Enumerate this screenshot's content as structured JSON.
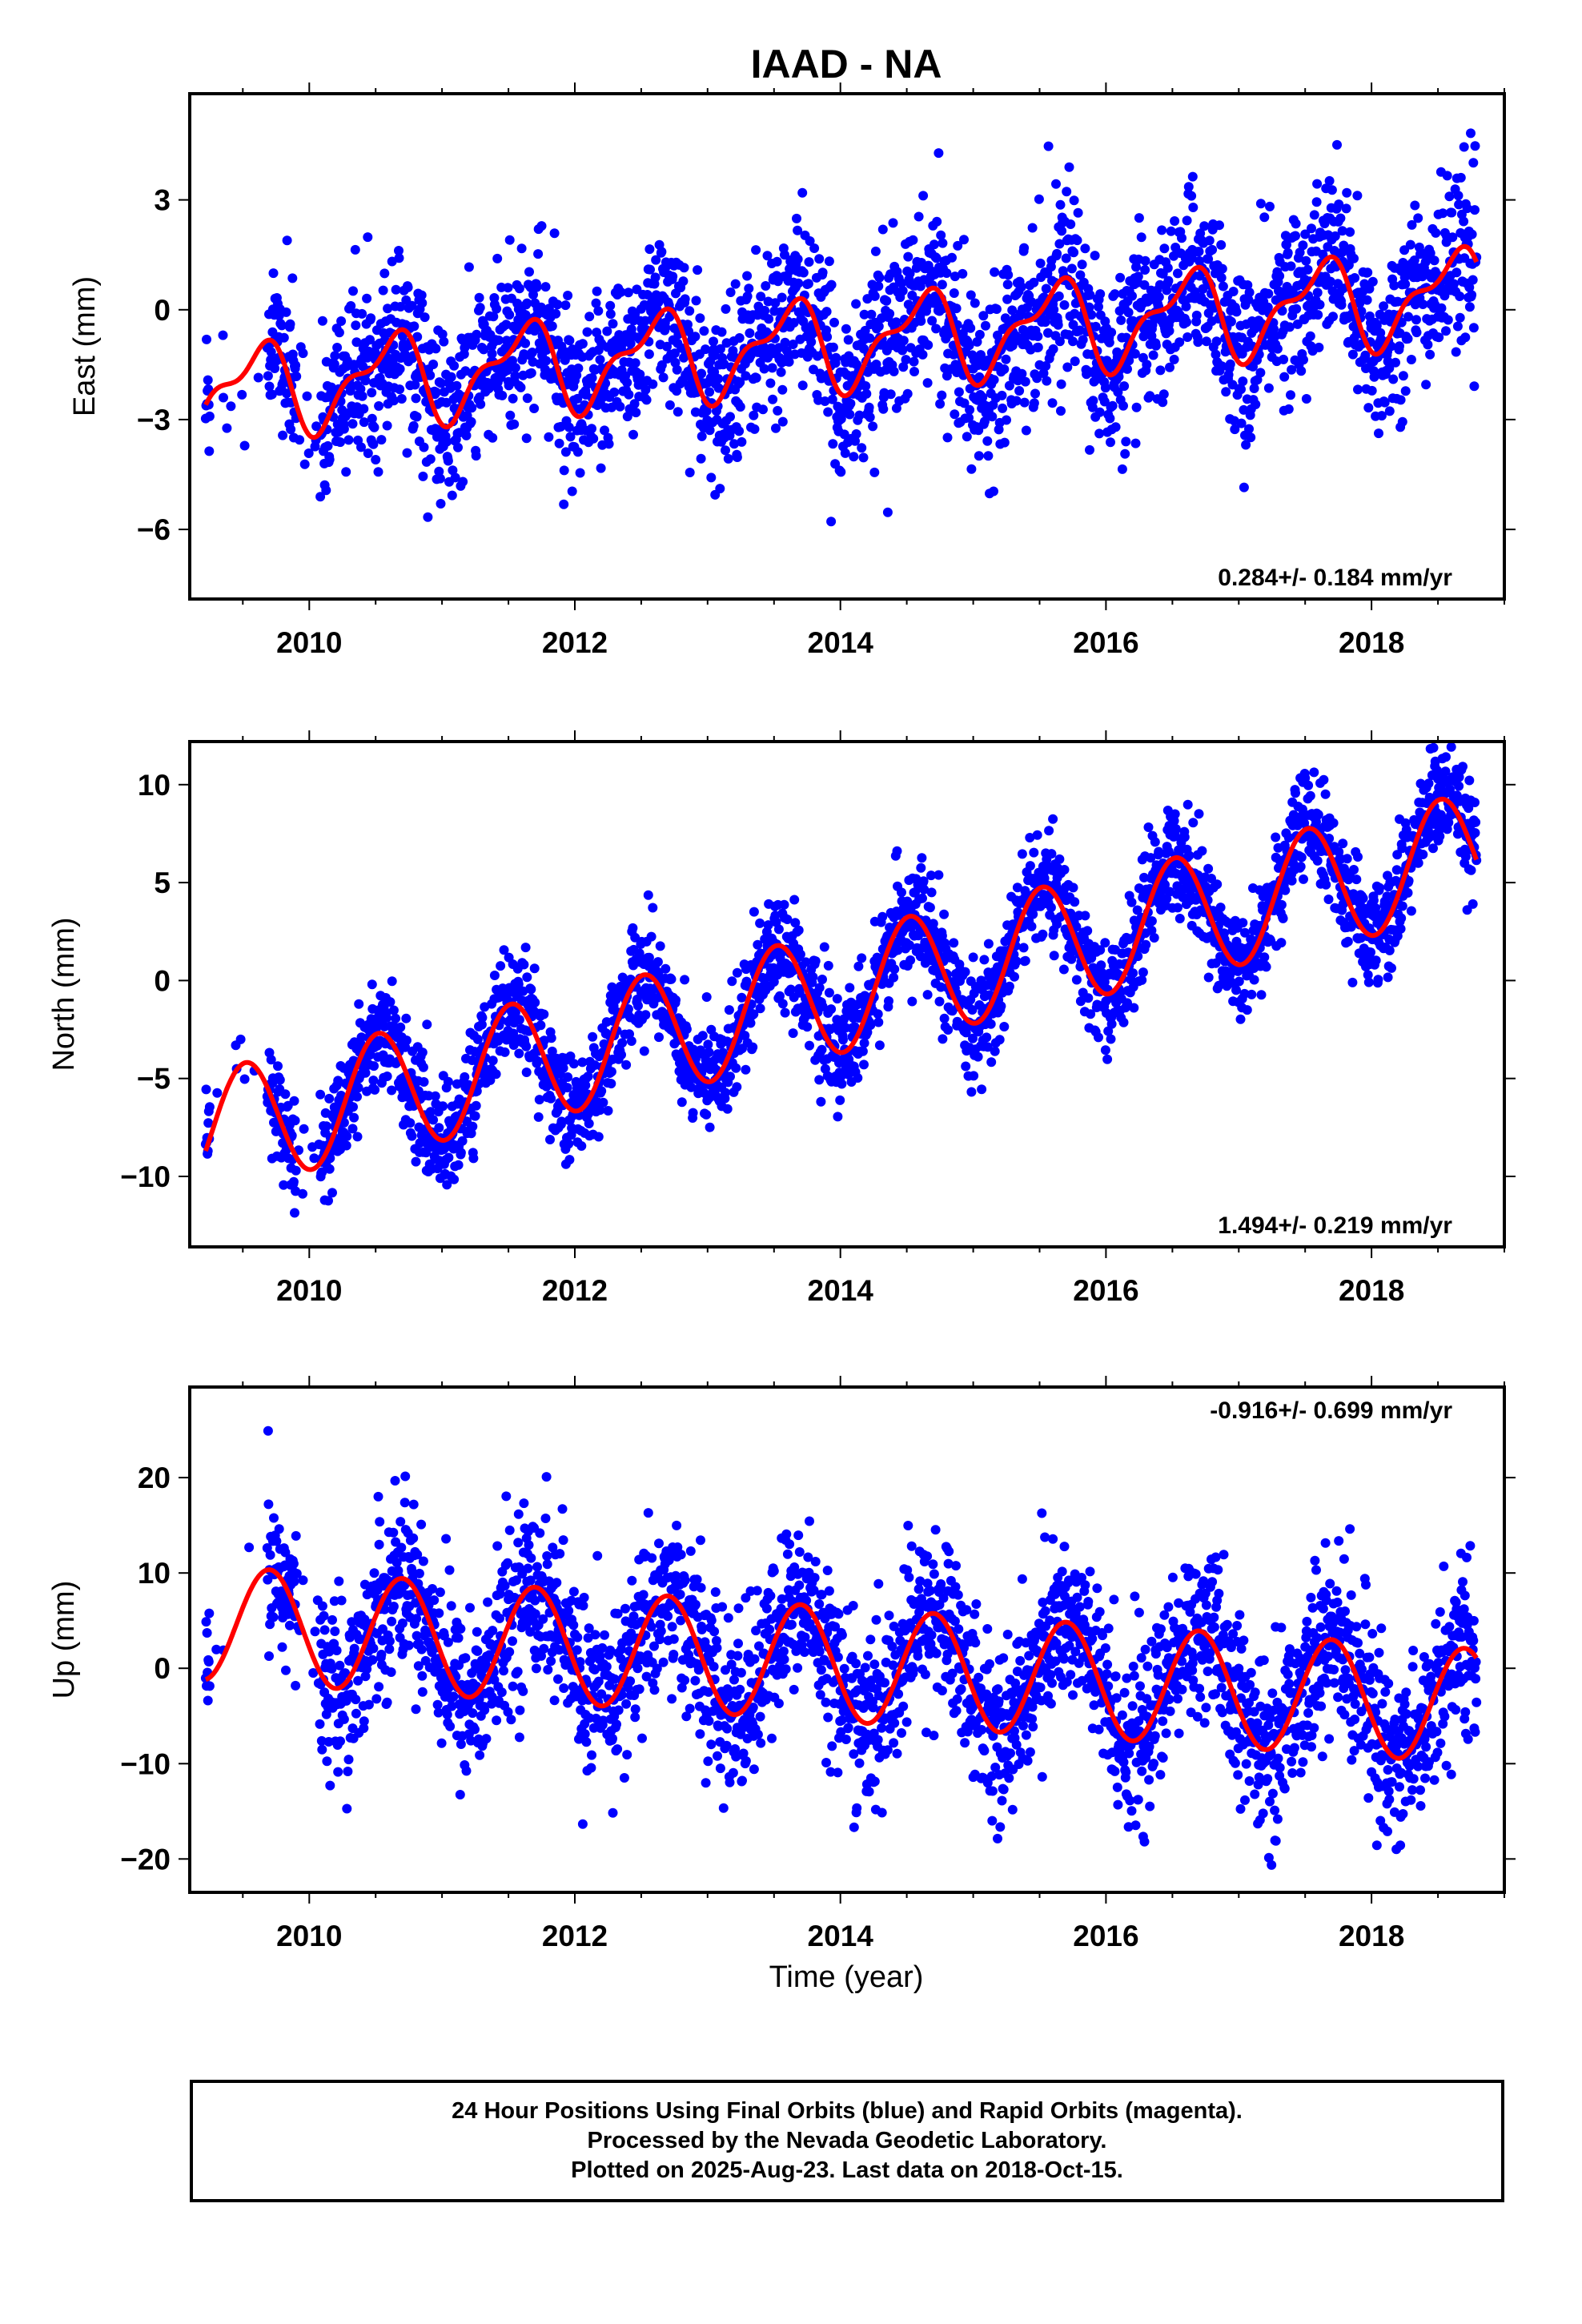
{
  "title": "IAAD - NA",
  "xlabel": "Time (year)",
  "colors": {
    "data": "#0000ff",
    "model": "#ff0000",
    "axes": "#000000"
  },
  "caption": [
    "24 Hour Positions Using Final Orbits (blue) and Rapid Orbits (magenta).",
    "Processed by the Nevada Geodetic Laboratory.",
    "Plotted on 2025-Aug-23. Last data on 2018-Oct-15."
  ],
  "chart_data": [
    {
      "type": "scatter",
      "component": "east",
      "ylabel": "East (mm)",
      "rate_text": "0.284+/- 0.184 mm/yr",
      "xlim": [
        2009.1,
        2019.0
      ],
      "ylim": [
        -7.9,
        5.9
      ],
      "xticks": [
        2010,
        2012,
        2014,
        2016,
        2018
      ],
      "yticks": [
        -6,
        -3,
        0,
        3
      ],
      "grid": false,
      "data_start": 2009.22,
      "data_end": 2018.79,
      "model": {
        "offset": -0.9,
        "rate": 0.284,
        "ref_year": 2014.0,
        "annual_amp": 1.1,
        "annual_peak": 2009.6,
        "semiannual_amp": 0.5,
        "semiannual_peak": 2009.75
      },
      "scatter_spread": 1.1,
      "series": [
        {
          "name": "Final Orbits",
          "color": "#0000ff"
        },
        {
          "name": "Model",
          "color": "#ff0000"
        }
      ]
    },
    {
      "type": "scatter",
      "component": "north",
      "ylabel": "North (mm)",
      "rate_text": "1.494+/- 0.219 mm/yr",
      "xlim": [
        2009.1,
        2019.0
      ],
      "ylim": [
        -13.6,
        12.2
      ],
      "xticks": [
        2010,
        2012,
        2014,
        2016,
        2018
      ],
      "yticks": [
        -10,
        -5,
        0,
        5,
        10
      ],
      "grid": false,
      "data_start": 2009.22,
      "data_end": 2018.79,
      "model": {
        "offset": -0.6,
        "rate": 1.494,
        "ref_year": 2014.0,
        "annual_amp": 3.1,
        "annual_peak": 2009.52,
        "semiannual_amp": 0.0,
        "semiannual_peak": 2009.5
      },
      "scatter_spread": 1.3,
      "series": [
        {
          "name": "Final Orbits",
          "color": "#0000ff"
        },
        {
          "name": "Model",
          "color": "#ff0000"
        }
      ]
    },
    {
      "type": "scatter",
      "component": "up",
      "ylabel": "Up (mm)",
      "rate_text": "-0.916+/- 0.699 mm/yr",
      "xlim": [
        2009.1,
        2019.0
      ],
      "ylim": [
        -23.5,
        29.5
      ],
      "xticks": [
        2010,
        2012,
        2014,
        2016,
        2018
      ],
      "yticks": [
        -20,
        -10,
        0,
        10,
        20
      ],
      "grid": false,
      "data_start": 2009.22,
      "data_end": 2018.79,
      "model": {
        "offset": 0.4,
        "rate": -0.916,
        "ref_year": 2014.0,
        "annual_amp": 6.0,
        "annual_peak": 2009.7,
        "semiannual_amp": 0.0,
        "semiannual_peak": 2009.7
      },
      "scatter_spread": 4.3,
      "series": [
        {
          "name": "Final Orbits",
          "color": "#0000ff"
        },
        {
          "name": "Model",
          "color": "#ff0000"
        }
      ]
    }
  ]
}
